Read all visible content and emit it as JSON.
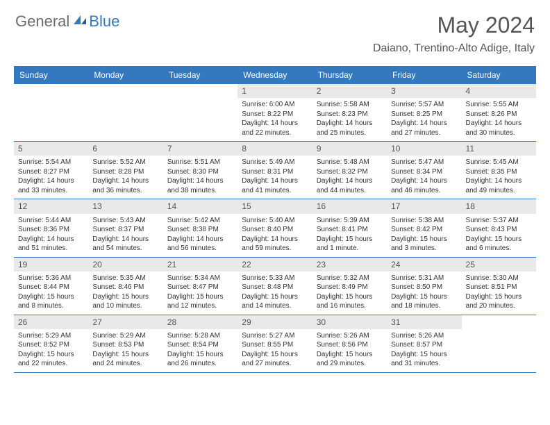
{
  "brand": {
    "text1": "General",
    "text2": "Blue"
  },
  "title": "May 2024",
  "location": "Daiano, Trentino-Alto Adige, Italy",
  "colors": {
    "header_bg": "#3478bd",
    "header_text": "#ffffff",
    "daynum_bg": "#e9e9e9",
    "row_border": "#3478bd",
    "body_text": "#333333",
    "title_text": "#555555"
  },
  "day_labels": [
    "Sunday",
    "Monday",
    "Tuesday",
    "Wednesday",
    "Thursday",
    "Friday",
    "Saturday"
  ],
  "weeks": [
    [
      null,
      null,
      null,
      {
        "n": "1",
        "sr": "6:00 AM",
        "ss": "8:22 PM",
        "dl": "14 hours and 22 minutes."
      },
      {
        "n": "2",
        "sr": "5:58 AM",
        "ss": "8:23 PM",
        "dl": "14 hours and 25 minutes."
      },
      {
        "n": "3",
        "sr": "5:57 AM",
        "ss": "8:25 PM",
        "dl": "14 hours and 27 minutes."
      },
      {
        "n": "4",
        "sr": "5:55 AM",
        "ss": "8:26 PM",
        "dl": "14 hours and 30 minutes."
      }
    ],
    [
      {
        "n": "5",
        "sr": "5:54 AM",
        "ss": "8:27 PM",
        "dl": "14 hours and 33 minutes."
      },
      {
        "n": "6",
        "sr": "5:52 AM",
        "ss": "8:28 PM",
        "dl": "14 hours and 36 minutes."
      },
      {
        "n": "7",
        "sr": "5:51 AM",
        "ss": "8:30 PM",
        "dl": "14 hours and 38 minutes."
      },
      {
        "n": "8",
        "sr": "5:49 AM",
        "ss": "8:31 PM",
        "dl": "14 hours and 41 minutes."
      },
      {
        "n": "9",
        "sr": "5:48 AM",
        "ss": "8:32 PM",
        "dl": "14 hours and 44 minutes."
      },
      {
        "n": "10",
        "sr": "5:47 AM",
        "ss": "8:34 PM",
        "dl": "14 hours and 46 minutes."
      },
      {
        "n": "11",
        "sr": "5:45 AM",
        "ss": "8:35 PM",
        "dl": "14 hours and 49 minutes."
      }
    ],
    [
      {
        "n": "12",
        "sr": "5:44 AM",
        "ss": "8:36 PM",
        "dl": "14 hours and 51 minutes."
      },
      {
        "n": "13",
        "sr": "5:43 AM",
        "ss": "8:37 PM",
        "dl": "14 hours and 54 minutes."
      },
      {
        "n": "14",
        "sr": "5:42 AM",
        "ss": "8:38 PM",
        "dl": "14 hours and 56 minutes."
      },
      {
        "n": "15",
        "sr": "5:40 AM",
        "ss": "8:40 PM",
        "dl": "14 hours and 59 minutes."
      },
      {
        "n": "16",
        "sr": "5:39 AM",
        "ss": "8:41 PM",
        "dl": "15 hours and 1 minute."
      },
      {
        "n": "17",
        "sr": "5:38 AM",
        "ss": "8:42 PM",
        "dl": "15 hours and 3 minutes."
      },
      {
        "n": "18",
        "sr": "5:37 AM",
        "ss": "8:43 PM",
        "dl": "15 hours and 6 minutes."
      }
    ],
    [
      {
        "n": "19",
        "sr": "5:36 AM",
        "ss": "8:44 PM",
        "dl": "15 hours and 8 minutes."
      },
      {
        "n": "20",
        "sr": "5:35 AM",
        "ss": "8:46 PM",
        "dl": "15 hours and 10 minutes."
      },
      {
        "n": "21",
        "sr": "5:34 AM",
        "ss": "8:47 PM",
        "dl": "15 hours and 12 minutes."
      },
      {
        "n": "22",
        "sr": "5:33 AM",
        "ss": "8:48 PM",
        "dl": "15 hours and 14 minutes."
      },
      {
        "n": "23",
        "sr": "5:32 AM",
        "ss": "8:49 PM",
        "dl": "15 hours and 16 minutes."
      },
      {
        "n": "24",
        "sr": "5:31 AM",
        "ss": "8:50 PM",
        "dl": "15 hours and 18 minutes."
      },
      {
        "n": "25",
        "sr": "5:30 AM",
        "ss": "8:51 PM",
        "dl": "15 hours and 20 minutes."
      }
    ],
    [
      {
        "n": "26",
        "sr": "5:29 AM",
        "ss": "8:52 PM",
        "dl": "15 hours and 22 minutes."
      },
      {
        "n": "27",
        "sr": "5:29 AM",
        "ss": "8:53 PM",
        "dl": "15 hours and 24 minutes."
      },
      {
        "n": "28",
        "sr": "5:28 AM",
        "ss": "8:54 PM",
        "dl": "15 hours and 26 minutes."
      },
      {
        "n": "29",
        "sr": "5:27 AM",
        "ss": "8:55 PM",
        "dl": "15 hours and 27 minutes."
      },
      {
        "n": "30",
        "sr": "5:26 AM",
        "ss": "8:56 PM",
        "dl": "15 hours and 29 minutes."
      },
      {
        "n": "31",
        "sr": "5:26 AM",
        "ss": "8:57 PM",
        "dl": "15 hours and 31 minutes."
      },
      null
    ]
  ],
  "labels": {
    "sunrise": "Sunrise:",
    "sunset": "Sunset:",
    "daylight": "Daylight:"
  }
}
